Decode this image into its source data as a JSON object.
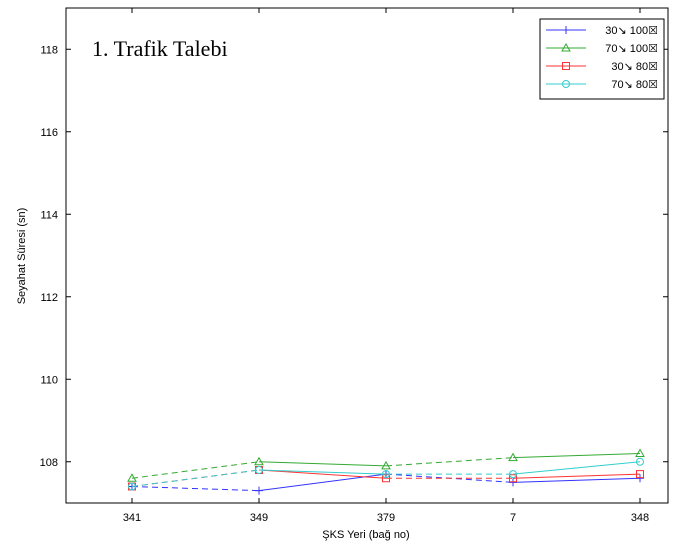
{
  "chart_data": {
    "type": "line",
    "annotation": "1. Trafik Talebi",
    "xlabel": "ŞKS Yeri (bağ no)",
    "ylabel": "Seyahat Süresi (sn)",
    "categories": [
      "341",
      "349",
      "379",
      "7",
      "348"
    ],
    "ylim": [
      107,
      119
    ],
    "yticks": [
      108,
      110,
      112,
      114,
      116,
      118
    ],
    "grid": false,
    "legend_position": "top-right",
    "series": [
      {
        "name": "30↘ 100☒",
        "values": [
          107.4,
          107.3,
          107.7,
          107.5,
          107.6
        ],
        "color": "#3333ff",
        "marker": "plus"
      },
      {
        "name": "70↘ 100☒",
        "values": [
          107.6,
          108.0,
          107.9,
          108.1,
          108.2
        ],
        "color": "#33aa33",
        "marker": "triangle"
      },
      {
        "name": "30↘ 80☒",
        "values": [
          107.4,
          107.8,
          107.6,
          107.6,
          107.7
        ],
        "color": "#ff3333",
        "marker": "square"
      },
      {
        "name": "70↘ 80☒",
        "values": [
          107.4,
          107.8,
          107.7,
          107.7,
          108.0
        ],
        "color": "#33cccc",
        "marker": "circle"
      }
    ]
  }
}
